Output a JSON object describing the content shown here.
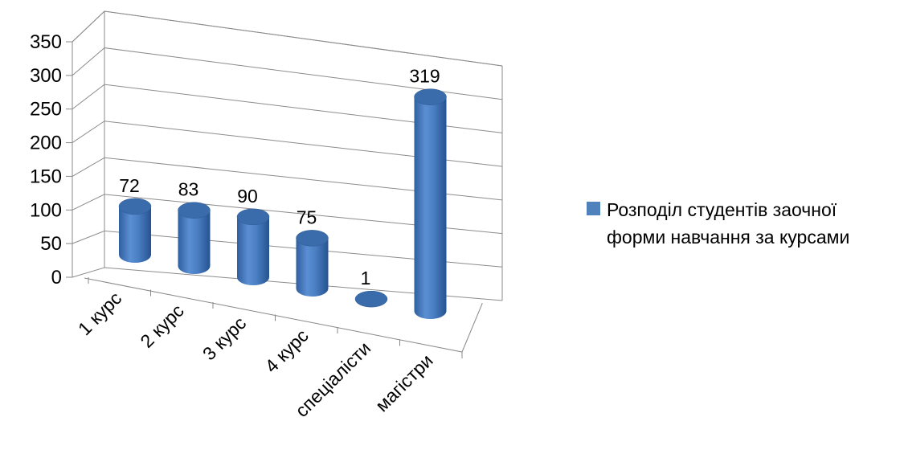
{
  "chart_data": {
    "type": "bar",
    "style": "3d-cylinder",
    "categories": [
      "1 курс",
      "2 курс",
      "3 курс",
      "4 курс",
      "спеціалісти",
      "магістри"
    ],
    "series": [
      {
        "name": "Розподіл студентів заочної форми навчання за курсами",
        "values": [
          72,
          83,
          90,
          75,
          1,
          319
        ],
        "color": "#4F81BD"
      }
    ],
    "data_labels": [
      "72",
      "83",
      "90",
      "75",
      "1",
      "319"
    ],
    "y_ticks": [
      0,
      50,
      100,
      150,
      200,
      250,
      300,
      350
    ],
    "ylim": [
      0,
      350
    ],
    "grid": true,
    "legend": "right"
  }
}
